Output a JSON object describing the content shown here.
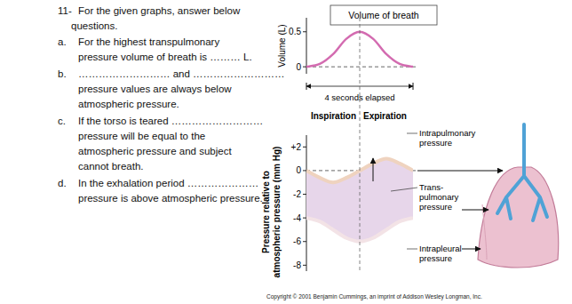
{
  "questions": {
    "number": "11-",
    "intro": [
      "For the given graphs, answer below",
      "questions."
    ],
    "items": [
      {
        "letter": "a.",
        "lines": [
          "For the highest transpulmonary",
          "pressure volume of breath is ……… L."
        ]
      },
      {
        "letter": "b.",
        "lines": [
          "……………………… and ………………………",
          "pressure values are always below",
          "atmospheric pressure."
        ]
      },
      {
        "letter": "c.",
        "lines": [
          "If the torso is teared ………………………",
          "pressure will be equal to the",
          "atmospheric pressure and subject",
          "cannot breath."
        ]
      },
      {
        "letter": "d.",
        "lines": [
          "In the exhalation period …………………",
          "pressure is above atmospheric pressure."
        ]
      }
    ]
  },
  "chart_data": [
    {
      "type": "line",
      "title": "Volume of breath",
      "y_label": "Volume (L)",
      "annotations": [
        "4 seconds elapsed"
      ],
      "x": [
        0,
        0.5,
        1,
        1.5,
        2,
        2.5,
        3,
        3.5,
        4
      ],
      "values": [
        0,
        0.04,
        0.18,
        0.4,
        0.5,
        0.4,
        0.18,
        0.04,
        0
      ],
      "color": "#d36bb0",
      "xlim": [
        0,
        4
      ],
      "ylim": [
        -0.1,
        0.7
      ],
      "yticks": [
        0,
        0.5
      ],
      "tick_labels": "y",
      "grid": false
    },
    {
      "type": "line",
      "y_label": [
        "Pressure relative to",
        "atmospheric pressure (mm Hg)"
      ],
      "phases": [
        "Inspiration",
        "Expiration"
      ],
      "annotations": [
        [
          "Trans-",
          "pulmonary",
          "pressure"
        ]
      ],
      "x": [
        0,
        0.5,
        1,
        1.5,
        2,
        2.5,
        3,
        3.5,
        4
      ],
      "series": [
        {
          "name": "Intrapulmonary pressure",
          "color": "#efd3bf",
          "values": [
            0,
            -0.6,
            -1,
            -0.6,
            0,
            0.6,
            1,
            0.6,
            0
          ]
        },
        {
          "name": "Intrapleural pressure",
          "color": "#f3e3e6",
          "values": [
            -4,
            -4.3,
            -5,
            -5.7,
            -6,
            -5.7,
            -5,
            -4.3,
            -4
          ]
        }
      ],
      "xlim": [
        0,
        4
      ],
      "ylim": [
        -8.5,
        3
      ],
      "yticks": [
        {
          "value": 2,
          "label": "+2"
        },
        0,
        -2,
        -4,
        -6,
        -8
      ],
      "tick_labels": "y",
      "grid": false
    }
  ],
  "diagram": {
    "copyright": "Copyright © 2001 Benjamin Cummings, an imprint of Addison Wesley Longman, Inc."
  }
}
